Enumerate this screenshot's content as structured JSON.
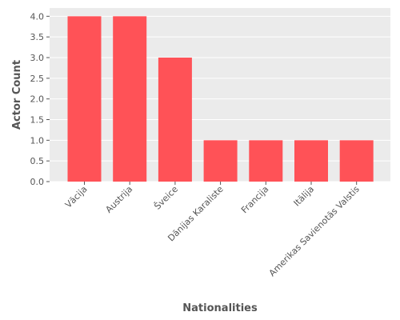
{
  "chart_data": {
    "type": "bar",
    "categories": [
      "Vācija",
      "Austrija",
      "Šveice",
      "Dānijas Karaliste",
      "Francija",
      "Itālija",
      "Amerikas Savienotās Valstis"
    ],
    "values": [
      4,
      4,
      3,
      1,
      1,
      1,
      1
    ],
    "xlabel": "Nationalities",
    "ylabel": "Actor Count",
    "ylim": [
      0,
      4.2
    ],
    "yticks": [
      0.0,
      0.5,
      1.0,
      1.5,
      2.0,
      2.5,
      3.0,
      3.5,
      4.0
    ],
    "grid": true,
    "legend": "none",
    "colors": {
      "bar": "#ff5257",
      "panel": "#ebebeb",
      "grid": "#ffffff",
      "text": "#555555"
    }
  }
}
